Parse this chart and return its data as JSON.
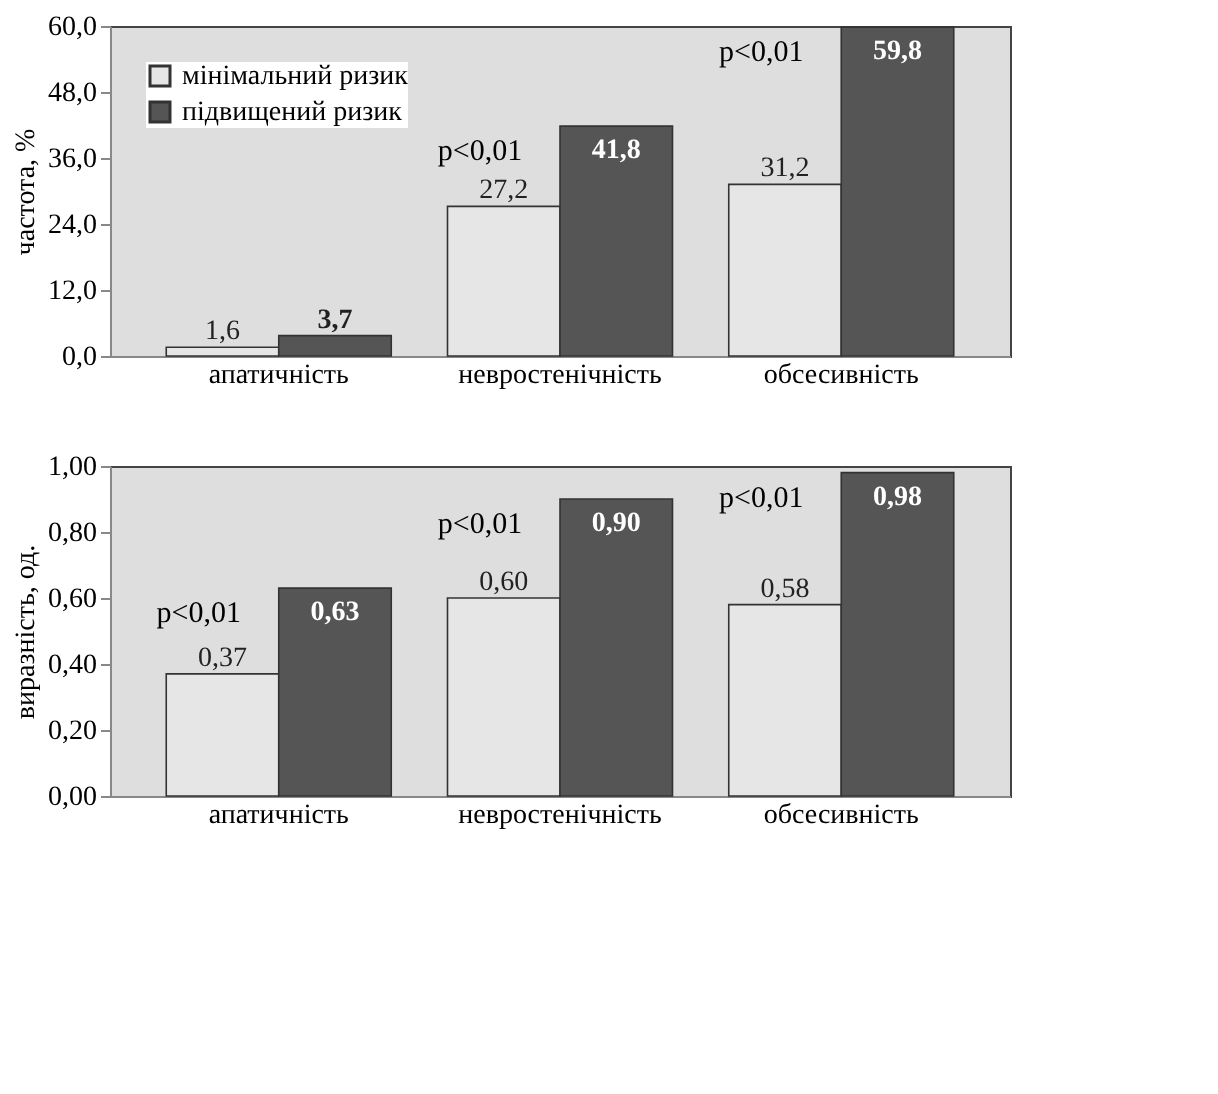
{
  "chart_data": [
    {
      "type": "bar",
      "categories": [
        "апатичність",
        "невростенічність",
        "обсесивність"
      ],
      "ylabel": "частота, %",
      "series": [
        {
          "name": "мінімальний ризик",
          "color": "#e6e6e6",
          "values": [
            1.6,
            27.2,
            31.2
          ],
          "value_labels": [
            "1,6",
            "27,2",
            "31,2"
          ]
        },
        {
          "name": "підвищений ризик",
          "color": "#555555",
          "values": [
            3.7,
            41.8,
            59.8
          ],
          "value_labels": [
            "3,7",
            "41,8",
            "59,8"
          ]
        }
      ],
      "ylim": [
        0,
        60
      ],
      "yticks": [
        {
          "value": 0,
          "label": "0,0"
        },
        {
          "value": 12,
          "label": "12,0"
        },
        {
          "value": 24,
          "label": "24,0"
        },
        {
          "value": 36,
          "label": "36,0"
        },
        {
          "value": 48,
          "label": "48,0"
        },
        {
          "value": 60,
          "label": "60,0"
        }
      ],
      "legend": "top left",
      "grid": false,
      "annotations": [
        {
          "text": "p<0,01",
          "x": "невростенічність",
          "y": 41.8
        },
        {
          "text": "p<0,01",
          "x": "обсесивність",
          "y": 59.8
        }
      ]
    },
    {
      "type": "bar",
      "categories": [
        "апатичність",
        "невростенічність",
        "обсесивність"
      ],
      "ylabel": "виразність, од.",
      "series": [
        {
          "color": "#e6e6e6",
          "values": [
            0.37,
            0.6,
            0.58
          ],
          "value_labels": [
            "0,37",
            "0,60",
            "0,58"
          ]
        },
        {
          "color": "#555555",
          "values": [
            0.63,
            0.9,
            0.98
          ],
          "value_labels": [
            "0,63",
            "0,90",
            "0,98"
          ]
        }
      ],
      "ylim": [
        0,
        1
      ],
      "yticks": [
        {
          "value": 0,
          "label": "0,00"
        },
        {
          "value": 0.2,
          "label": "0,20"
        },
        {
          "value": 0.4,
          "label": "0,40"
        },
        {
          "value": 0.6,
          "label": "0,60"
        },
        {
          "value": 0.8,
          "label": "0,80"
        },
        {
          "value": 1,
          "label": "1,00"
        }
      ],
      "legend": false,
      "grid": false,
      "annotations": [
        {
          "text": "p<0,01",
          "x": "апатичність",
          "y": 0.63
        },
        {
          "text": "p<0,01",
          "x": "невростенічність",
          "y": 0.9
        },
        {
          "text": "p<0,01",
          "x": "обсесивність",
          "y": 0.98
        }
      ]
    }
  ]
}
